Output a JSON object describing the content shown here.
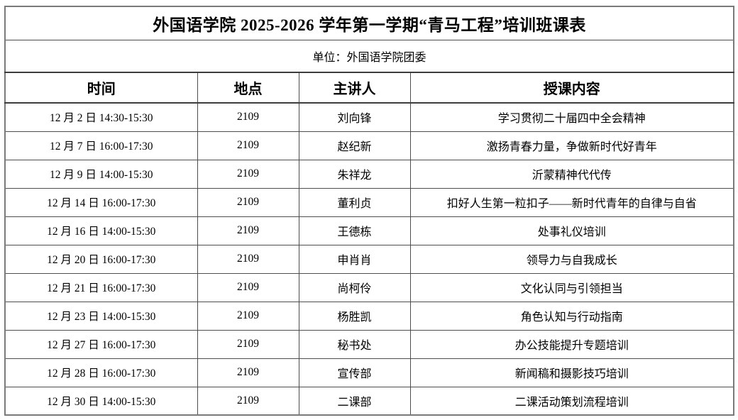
{
  "document": {
    "title": "外国语学院 2025-2026 学年第一学期“青马工程”培训班课表",
    "unit_label": "单位：外国语学院团委"
  },
  "table": {
    "columns": [
      "时间",
      "地点",
      "主讲人",
      "授课内容"
    ],
    "rows": [
      [
        "12 月 2 日  14:30-15:30",
        "2109",
        "刘向锋",
        "学习贯彻二十届四中全会精神"
      ],
      [
        "12 月 7 日  16:00-17:30",
        "2109",
        "赵纪新",
        "激扬青春力量，争做新时代好青年"
      ],
      [
        "12 月 9 日  14:00-15:30",
        "2109",
        "朱祥龙",
        "沂蒙精神代代传"
      ],
      [
        "12 月 14 日  16:00-17:30",
        "2109",
        "董利贞",
        "扣好人生第一粒扣子——新时代青年的自律与自省"
      ],
      [
        "12 月 16 日  14:00-15:30",
        "2109",
        "王德栋",
        "处事礼仪培训"
      ],
      [
        "12 月 20 日  16:00-17:30",
        "2109",
        "申肖肖",
        "领导力与自我成长"
      ],
      [
        "12 月 21 日  16:00-17:30",
        "2109",
        "尚柯伶",
        "文化认同与引领担当"
      ],
      [
        "12 月 23 日  14:00-15:30",
        "2109",
        "杨胜凯",
        "角色认知与行动指南"
      ],
      [
        "12 月 27 日  16:00-17:30",
        "2109",
        "秘书处",
        "办公技能提升专题培训"
      ],
      [
        "12 月 28 日  16:00-17:30",
        "2109",
        "宣传部",
        "新闻稿和摄影技巧培训"
      ],
      [
        "12 月 30 日  14:00-15:30",
        "2109",
        "二课部",
        "二课活动策划流程培训"
      ]
    ]
  },
  "colors": {
    "border_inner": "#4d4d4d",
    "border_outer": "#7a7a7a",
    "text": "#000000",
    "background": "#ffffff"
  }
}
